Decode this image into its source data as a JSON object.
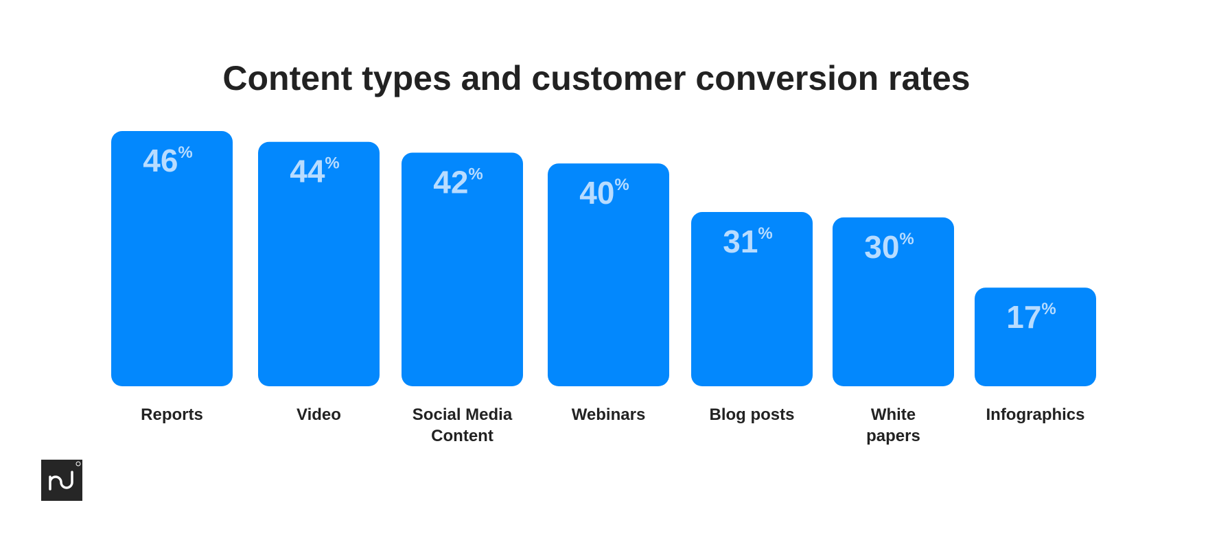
{
  "chart_data": {
    "type": "bar",
    "title": "Content types and customer conversion rates",
    "categories": [
      [
        "Reports"
      ],
      [
        "Video"
      ],
      [
        "Social Media",
        "Content"
      ],
      [
        "Webinars"
      ],
      [
        "Blog posts"
      ],
      [
        "White",
        "papers"
      ],
      [
        "Infographics"
      ]
    ],
    "values": [
      46,
      44,
      42,
      40,
      31,
      30,
      17
    ],
    "value_suffix": "%",
    "xlabel": "",
    "ylabel": "",
    "ylim": [
      0,
      46
    ],
    "grid": false,
    "colors": {
      "bar": "#0388fd",
      "value_label": "#b8dcff",
      "text": "#222222",
      "logo_bg": "#262626"
    }
  },
  "logo": {
    "text": "pd",
    "registered": "®"
  }
}
